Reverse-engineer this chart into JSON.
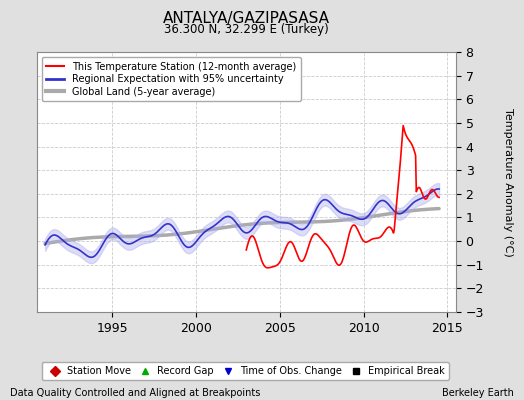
{
  "title": "ANTALYA/GAZIPASASA",
  "subtitle": "36.300 N, 32.299 E (Turkey)",
  "xlabel_note": "Data Quality Controlled and Aligned at Breakpoints",
  "xlabel_right": "Berkeley Earth",
  "ylabel": "Temperature Anomaly (°C)",
  "xlim": [
    1990.5,
    2015.5
  ],
  "ylim": [
    -3,
    8
  ],
  "yticks": [
    -3,
    -2,
    -1,
    0,
    1,
    2,
    3,
    4,
    5,
    6,
    7,
    8
  ],
  "xticks": [
    1995,
    2000,
    2005,
    2010,
    2015
  ],
  "bg_color": "#e0e0e0",
  "plot_bg_color": "#ffffff",
  "grid_color": "#cccccc",
  "station_color": "#ff0000",
  "station_lw": 1.2,
  "regional_color": "#3333cc",
  "regional_lw": 1.2,
  "regional_fill_color": "#aaaaee",
  "regional_fill_alpha": 0.4,
  "regional_std": 0.25,
  "global_color": "#aaaaaa",
  "global_lw": 2.5,
  "legend_entries": [
    {
      "label": "This Temperature Station (12-month average)",
      "color": "#ff0000",
      "lw": 1.5
    },
    {
      "label": "Regional Expectation with 95% uncertainty",
      "color": "#3333cc",
      "lw": 2.0
    },
    {
      "label": "Global Land (5-year average)",
      "color": "#aaaaaa",
      "lw": 3
    }
  ],
  "marker_legend": [
    {
      "label": "Station Move",
      "color": "#cc0000",
      "marker": "D"
    },
    {
      "label": "Record Gap",
      "color": "#00aa00",
      "marker": "^"
    },
    {
      "label": "Time of Obs. Change",
      "color": "#0000cc",
      "marker": "v"
    },
    {
      "label": "Empirical Break",
      "color": "#000000",
      "marker": "s"
    }
  ]
}
